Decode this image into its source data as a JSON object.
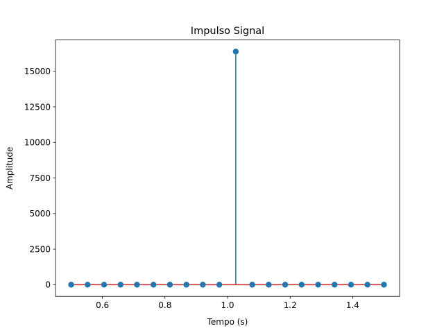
{
  "chart_data": {
    "type": "stem",
    "title": "Impulso Signal",
    "xlabel": "Tempo (s)",
    "ylabel": "Amplitude",
    "xlim": [
      0.45,
      1.55
    ],
    "ylim": [
      -820,
      17200
    ],
    "xticks": [
      0.6,
      0.8,
      1.0,
      1.2,
      1.4
    ],
    "xtick_labels": [
      "0.6",
      "0.8",
      "1.0",
      "1.2",
      "1.4"
    ],
    "yticks": [
      0,
      2500,
      5000,
      7500,
      10000,
      12500,
      15000
    ],
    "ytick_labels": [
      "0",
      "2500",
      "5000",
      "7500",
      "10000",
      "12500",
      "15000"
    ],
    "grid": false,
    "baseline": 0,
    "colors": {
      "stem": "#1f77b4",
      "marker": "#1f77b4",
      "baseline": "#d62728"
    },
    "series": [
      {
        "x": [
          0.5,
          0.5526,
          0.6053,
          0.6579,
          0.7105,
          0.7632,
          0.8158,
          0.8684,
          0.9211,
          0.9737,
          1.0263,
          1.0789,
          1.1316,
          1.1842,
          1.2368,
          1.2895,
          1.3421,
          1.3947,
          1.4474,
          1.5
        ],
        "y": [
          0,
          0,
          0,
          0,
          0,
          0,
          0,
          0,
          0,
          0,
          16384,
          0,
          0,
          0,
          0,
          0,
          0,
          0,
          0,
          0
        ]
      }
    ]
  }
}
